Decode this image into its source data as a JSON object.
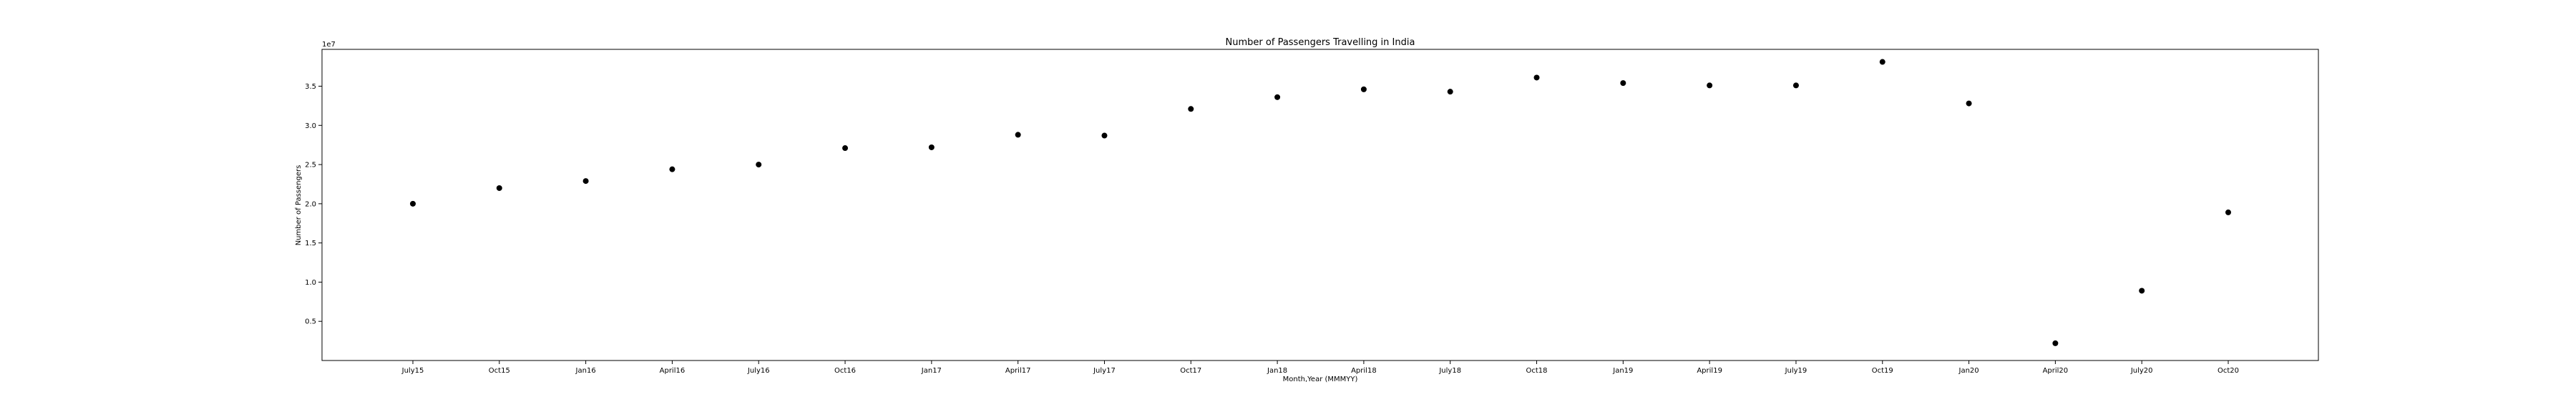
{
  "chart_data": {
    "type": "scatter",
    "title": "Number of Passengers Travelling in India",
    "xlabel": "Month,Year (MMMYY)",
    "ylabel": "Number of Passengers",
    "y_offset_text": "1e7",
    "categories": [
      "July15",
      "Oct15",
      "Jan16",
      "April16",
      "July16",
      "Oct16",
      "Jan17",
      "April17",
      "July17",
      "Oct17",
      "Jan18",
      "April18",
      "July18",
      "Oct18",
      "Jan19",
      "April19",
      "July19",
      "Oct19",
      "Jan20",
      "April20",
      "July20",
      "Oct20"
    ],
    "values": [
      20000000,
      22000000,
      22900000,
      24400000,
      25000000,
      27100000,
      27200000,
      28800000,
      28700000,
      32100000,
      33600000,
      34600000,
      34300000,
      36100000,
      35400000,
      35100000,
      35100000,
      38100000,
      32800000,
      2200000,
      8900000,
      18900000
    ],
    "y_ticks": [
      0.5,
      1.0,
      1.5,
      2.0,
      2.5,
      3.0,
      3.5
    ],
    "y_tick_labels": [
      "0.5",
      "1.0",
      "1.5",
      "2.0",
      "2.5",
      "3.0",
      "3.5"
    ],
    "ylim": [
      0,
      39700000
    ],
    "grid": false,
    "marker_color": "#000000"
  }
}
